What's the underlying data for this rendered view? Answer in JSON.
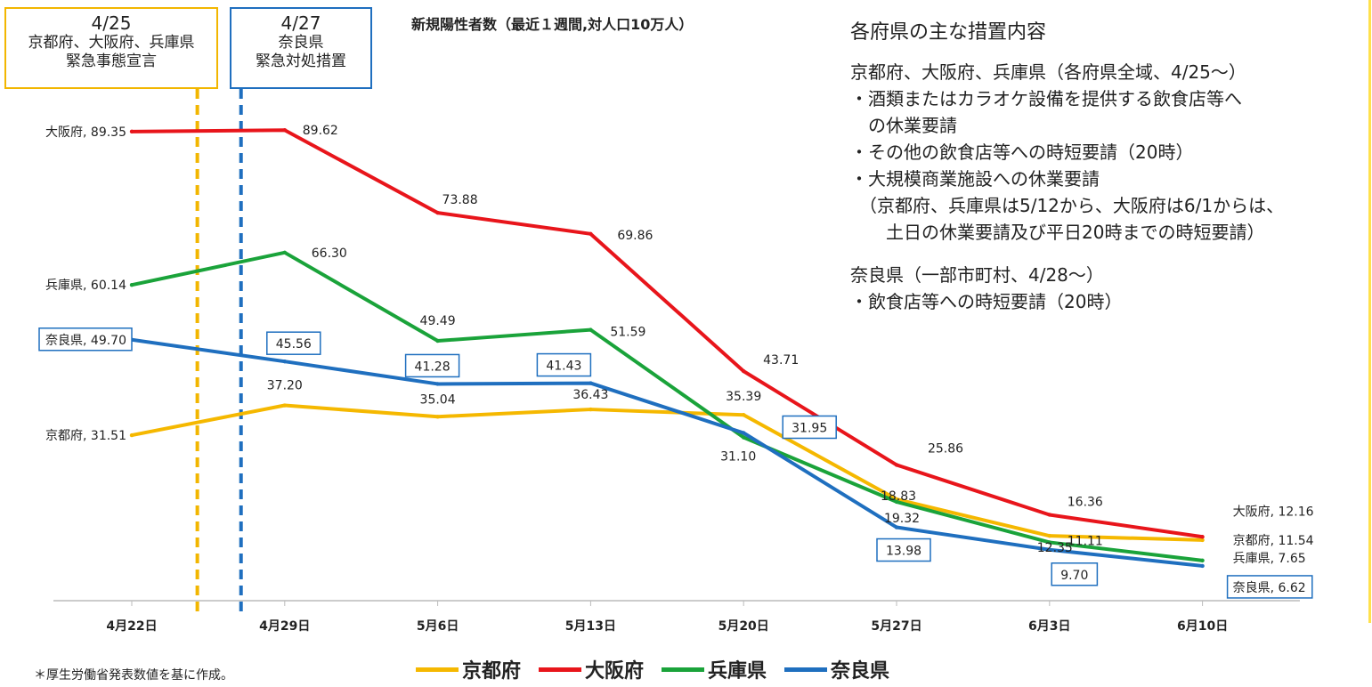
{
  "chart_title": "新規陽性者数（最近１週間,対人口10万人）",
  "events": [
    {
      "date": "4/25",
      "lines": [
        "京都府、大阪府、兵庫県",
        "緊急事態宣言"
      ],
      "color": "#f2b600"
    },
    {
      "date": "4/27",
      "lines": [
        "奈良県",
        "緊急対処措置"
      ],
      "color": "#1f6fbf"
    }
  ],
  "measures": {
    "title": "各府県の主な措置内容",
    "lines": [
      "京都府、大阪府、兵庫県（各府県全域、4/25～）",
      "・酒類またはカラオケ設備を提供する飲食店等へ",
      "　の休業要請",
      "・その他の飲食店等への時短要請（20時）",
      "・大規模商業施設への休業要請",
      "　（京都府、兵庫県は5/12から、大阪府は6/1からは、",
      "　　土日の休業要請及び平日20時までの時短要請）",
      "",
      "奈良県（一部市町村、4/28～）",
      "・飲食店等への時短要請（20時）"
    ]
  },
  "footnote": "＊厚生労働省発表数値を基に作成。",
  "chart_data": {
    "type": "line",
    "title": "新規陽性者数（最近１週間,対人口10万人）",
    "categories": [
      "4月22日",
      "4月29日",
      "5月6日",
      "5月13日",
      "5月20日",
      "5月27日",
      "6月3日",
      "6月10日"
    ],
    "event_lines": [
      {
        "date": "4/25",
        "color": "#f2b600"
      },
      {
        "date": "4/27",
        "color": "#1f6fbf"
      }
    ],
    "series": [
      {
        "name": "京都府",
        "color": "#f5b800",
        "values": [
          31.51,
          37.2,
          35.04,
          36.43,
          35.39,
          19.32,
          12.35,
          11.54
        ],
        "labels": [
          "京都府, 31.51",
          "37.20",
          "35.04",
          "36.43",
          "35.39",
          "19.32",
          "12.35",
          "京都府, 11.54"
        ]
      },
      {
        "name": "大阪府",
        "color": "#e8151b",
        "values": [
          89.35,
          89.62,
          73.88,
          69.86,
          43.71,
          25.86,
          16.36,
          12.16
        ],
        "labels": [
          "大阪府, 89.35",
          "89.62",
          "73.88",
          "69.86",
          "43.71",
          "25.86",
          "16.36",
          "大阪府, 12.16"
        ]
      },
      {
        "name": "兵庫県",
        "color": "#1aa33a",
        "values": [
          60.14,
          66.3,
          49.49,
          51.59,
          31.1,
          18.83,
          11.11,
          7.65
        ],
        "labels": [
          "兵庫県, 60.14",
          "66.30",
          "49.49",
          "51.59",
          "31.10",
          "18.83",
          "11.11",
          "兵庫県, 7.65"
        ]
      },
      {
        "name": "奈良県",
        "color": "#1f6fbf",
        "values": [
          49.7,
          45.56,
          41.28,
          41.43,
          31.95,
          13.98,
          9.7,
          6.62
        ],
        "labels": [
          "奈良県, 49.70",
          "45.56",
          "41.28",
          "41.43",
          "31.95",
          "13.98",
          "9.70",
          "奈良県, 6.62"
        ]
      }
    ],
    "ylim": [
      0,
      100
    ],
    "grid": false,
    "legend": "bottom"
  }
}
